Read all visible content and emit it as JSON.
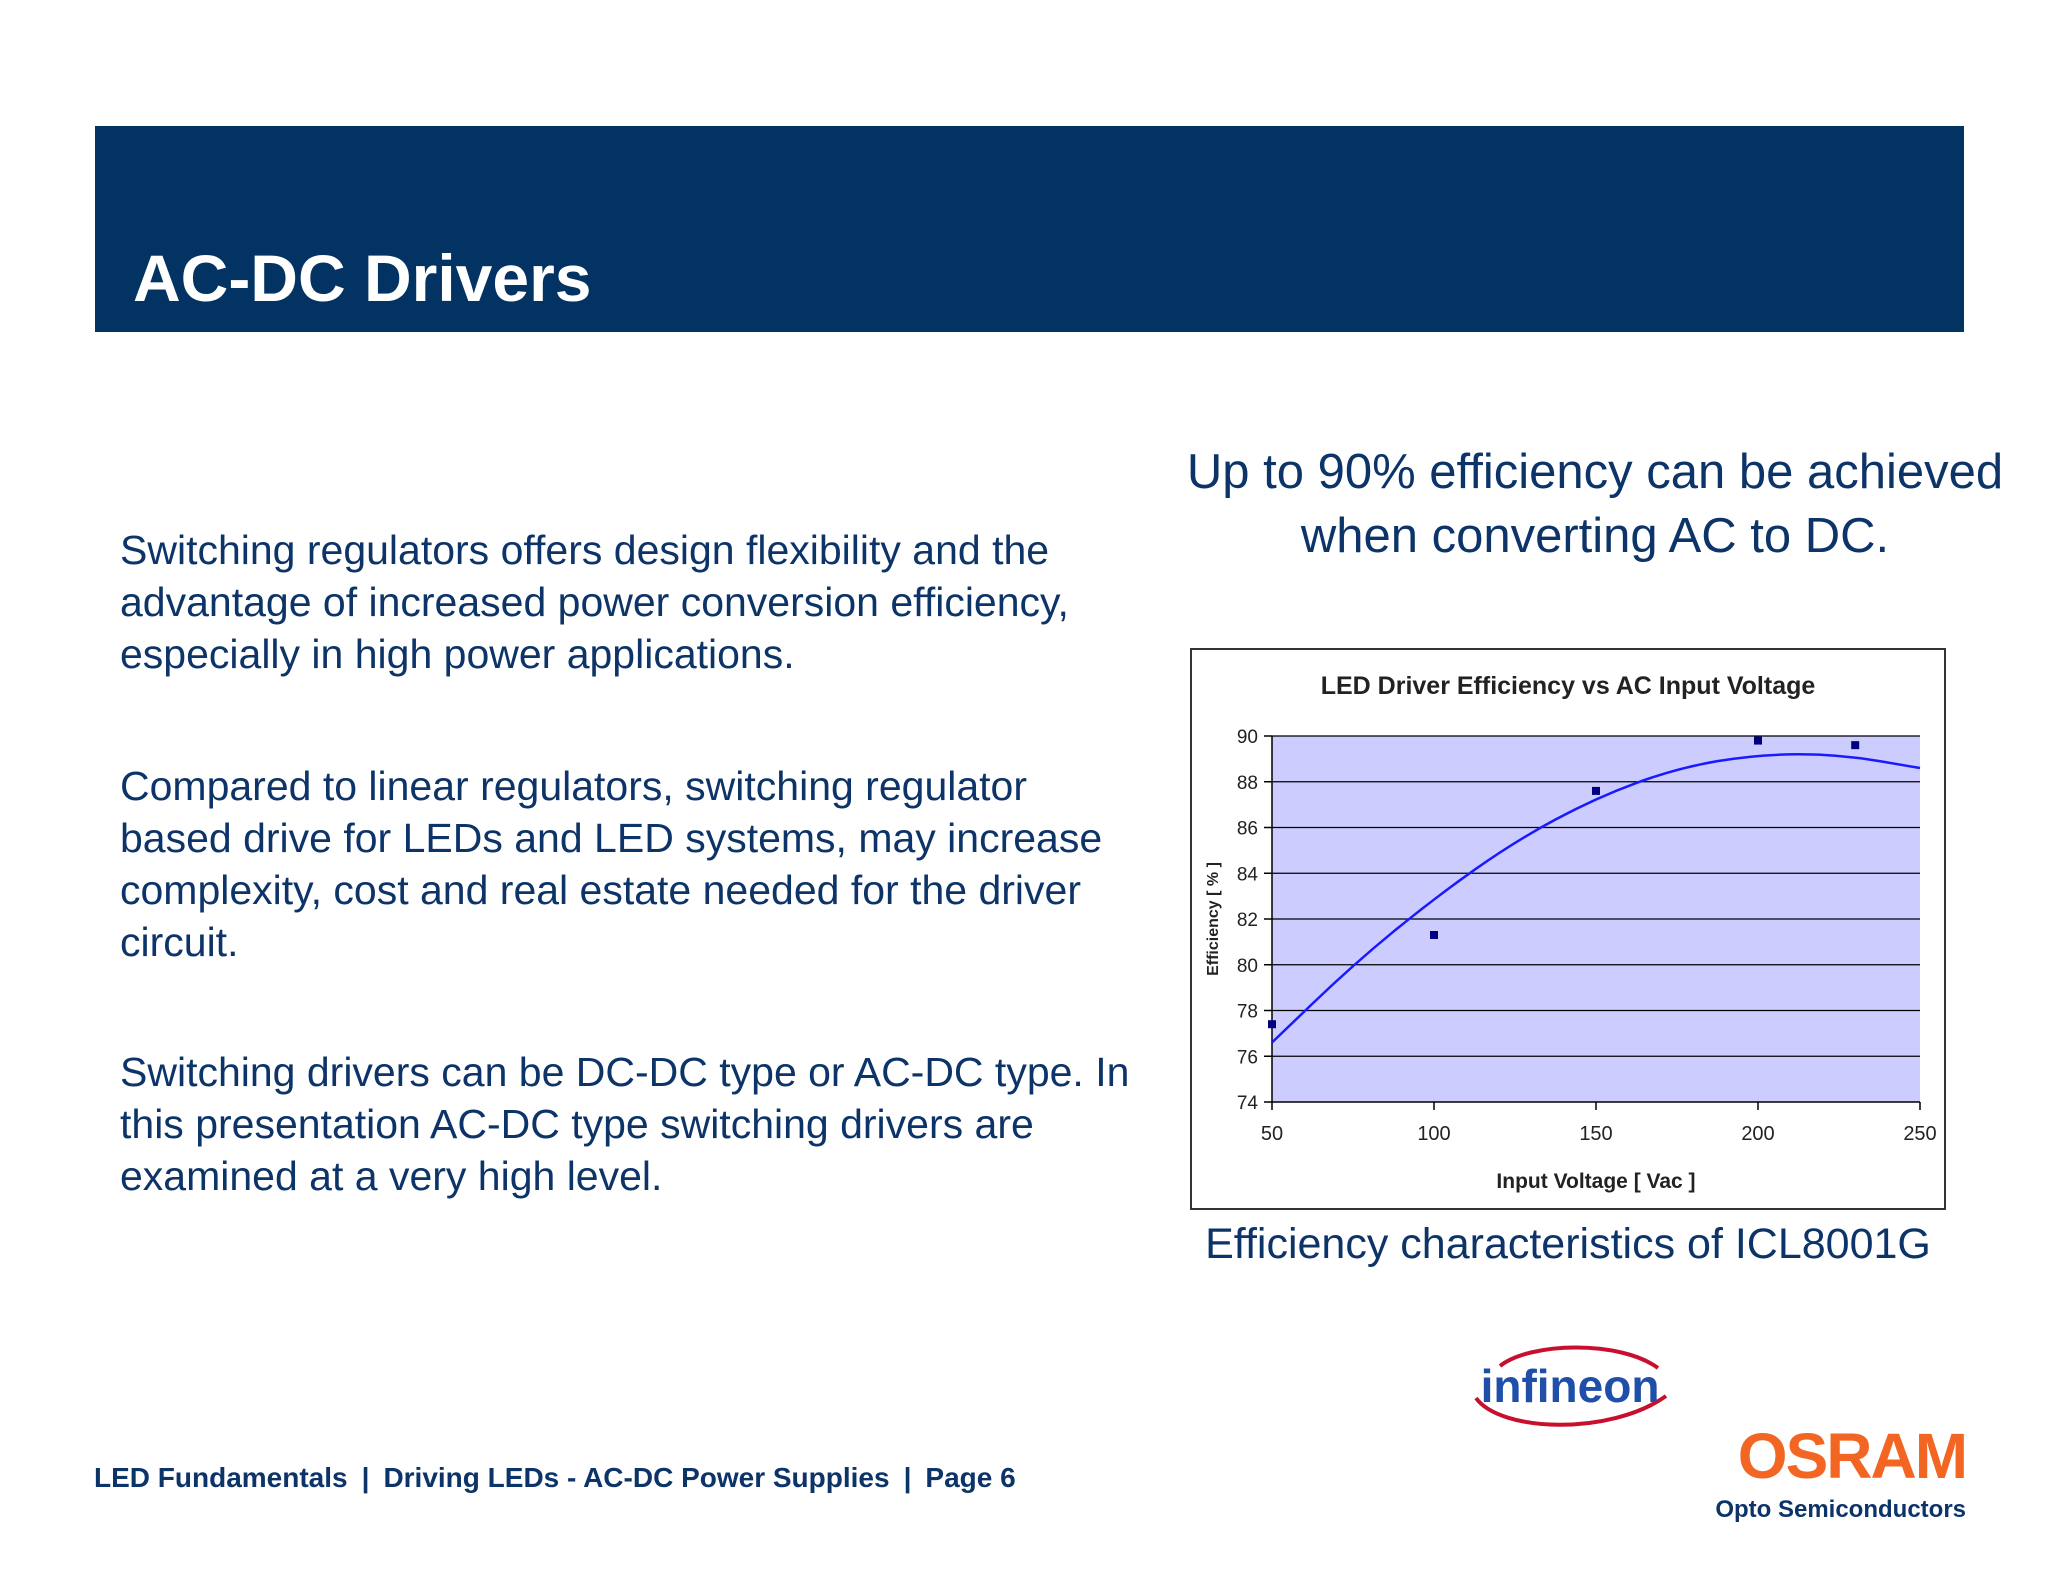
{
  "slide": {
    "title": "AC-DC Drivers",
    "paragraphs": [
      "Switching regulators offers design flexibility and the advantage of increased power conversion efficiency, especially in high power applications.",
      "Compared to linear regulators, switching regulator based drive for LEDs and LED systems, may increase complexity, cost and real estate needed for the driver circuit.",
      "Switching drivers can be DC-DC type or AC-DC type.  In this presentation AC-DC type switching drivers are examined at a very high level."
    ],
    "headline": "Up to 90% efficiency can be achieved when converting AC to DC.",
    "caption": "Efficiency characteristics of ICL8001G"
  },
  "footer": {
    "part1": "LED Fundamentals",
    "part2": "Driving LEDs - AC-DC Power Supplies",
    "part3": "Page 6",
    "separator": "|"
  },
  "logos": {
    "infineon": "infineon",
    "osram": "OSRAM",
    "osram_sub": "Opto Semiconductors"
  },
  "colors": {
    "header_band": "#033363",
    "text": "#0d3468",
    "plot_bg": "#ccccff",
    "trend_line": "#1a1aff",
    "markers": "#000080",
    "osram_orange": "#f26522",
    "infineon_red": "#c8102e",
    "infineon_blue": "#1f4fa8"
  },
  "chart_data": {
    "type": "scatter",
    "title": "LED Driver Efficiency vs AC Input Voltage",
    "xlabel": "Input Voltage [ Vac ]",
    "ylabel": "Efficiency [ % ]",
    "xlim": [
      50,
      250
    ],
    "ylim": [
      74,
      90
    ],
    "xticks": [
      50,
      100,
      150,
      200,
      250
    ],
    "yticks": [
      74,
      76,
      78,
      80,
      82,
      84,
      86,
      88,
      90
    ],
    "grid": "horizontal",
    "legend": "none",
    "series": [
      {
        "points": [
          [
            50,
            77.4
          ],
          [
            100,
            81.3
          ],
          [
            150,
            87.6
          ],
          [
            200,
            89.8
          ],
          [
            230,
            89.6
          ]
        ]
      }
    ],
    "trendline": {
      "kind": "polynomial",
      "x": [
        50,
        75,
        100,
        125,
        150,
        175,
        200,
        225,
        250
      ],
      "y": [
        76.6,
        80.0,
        82.9,
        85.4,
        87.3,
        88.6,
        89.2,
        89.2,
        88.6
      ]
    }
  }
}
